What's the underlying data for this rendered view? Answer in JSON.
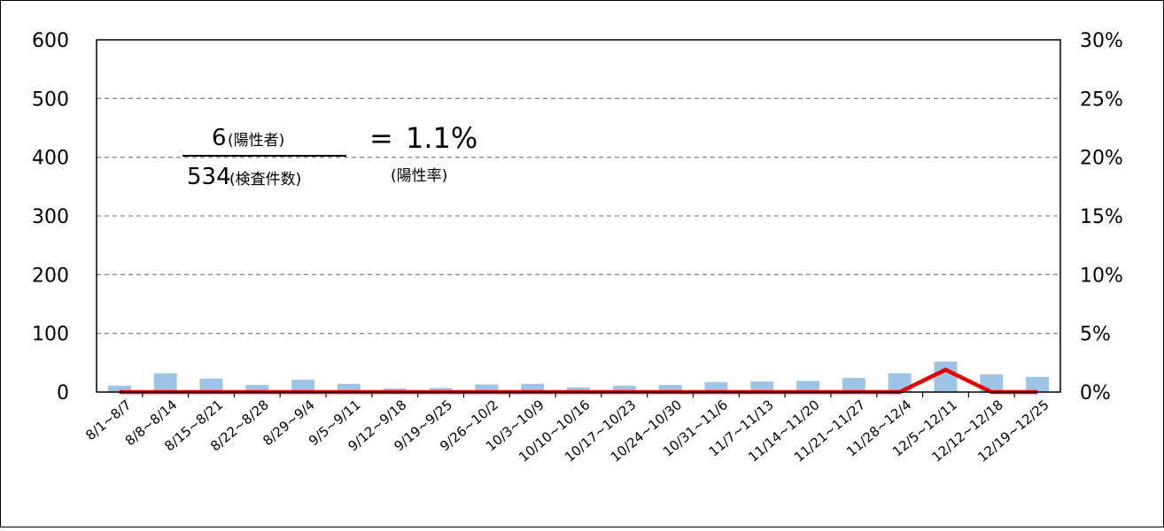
{
  "chart_data": {
    "type": "bar+line",
    "categories": [
      "8/1~8/7",
      "8/8~8/14",
      "8/15~8/21",
      "8/22~8/28",
      "8/29~9/4",
      "9/5~9/11",
      "9/12~9/18",
      "9/19~9/25",
      "9/26~10/2",
      "10/3~10/9",
      "10/10~10/16",
      "10/17~10/23",
      "10/24~10/30",
      "10/31~11/6",
      "11/7~11/13",
      "11/14~11/20",
      "11/21~11/27",
      "11/28~12/4",
      "12/5~12/11",
      "12/12~12/18",
      "12/19~12/25"
    ],
    "series": [
      {
        "axis": "left",
        "kind": "bar",
        "color": "#9DC3E6",
        "values": [
          11,
          32,
          23,
          12,
          21,
          14,
          6,
          7,
          13,
          14,
          8,
          11,
          12,
          17,
          18,
          19,
          24,
          32,
          52,
          30,
          26
        ]
      },
      {
        "axis": "right",
        "kind": "line",
        "color": "#E80000",
        "values": [
          0,
          0,
          0,
          0,
          0,
          0,
          0,
          0,
          0,
          0,
          0,
          0,
          0,
          0,
          0,
          0,
          0,
          0,
          1.9,
          0,
          0
        ]
      }
    ],
    "left_axis": {
      "range": [
        0,
        600
      ],
      "ticks": [
        0,
        100,
        200,
        300,
        400,
        500,
        600
      ],
      "tick_labels": [
        "0",
        "100",
        "200",
        "300",
        "400",
        "500",
        "600"
      ]
    },
    "right_axis": {
      "range": [
        0,
        30
      ],
      "ticks": [
        0,
        5,
        10,
        15,
        20,
        25,
        30
      ],
      "tick_labels": [
        "0%",
        "5%",
        "10%",
        "15%",
        "20%",
        "25%",
        "30%"
      ]
    },
    "grid": "horizontal-dashed",
    "legend": "none"
  },
  "annotation": {
    "positives_count": "6",
    "positives_label": "(陽性者)",
    "tests_count": "534",
    "tests_label": "(検査件数)",
    "equals": "=",
    "rate_value": "1.1%",
    "rate_label": "(陽性率)"
  }
}
